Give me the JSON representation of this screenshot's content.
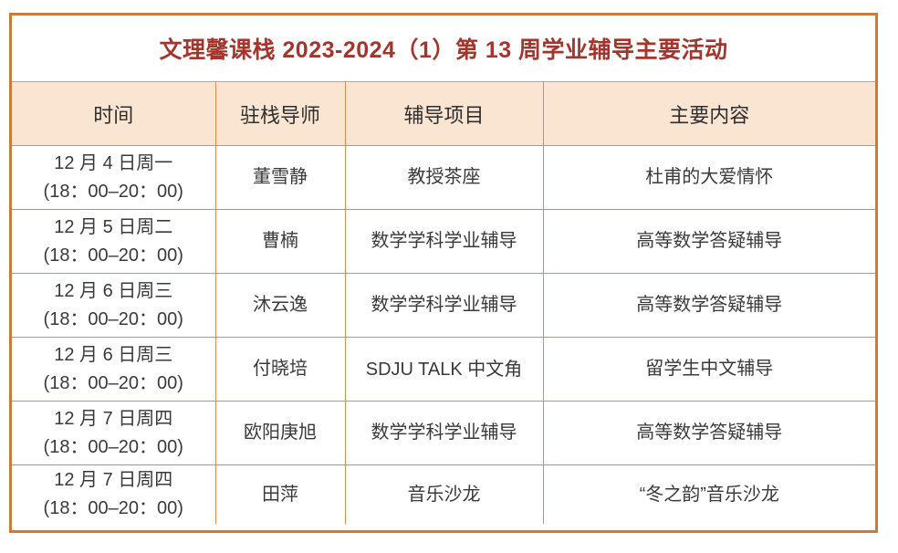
{
  "title": "文理馨课栈 2023-2024（1）第 13 周学业辅导主要活动",
  "table": {
    "columns": [
      "时间",
      "驻栈导师",
      "辅导项目",
      "主要内容"
    ],
    "rows": [
      {
        "date": "12 月 4 日周一",
        "time": "(18：00–20：00)",
        "tutor": "董雪静",
        "project": "教授茶座",
        "content": "杜甫的大爱情怀"
      },
      {
        "date": "12 月 5 日周二",
        "time": "(18：00–20：00)",
        "tutor": "曹楠",
        "project": "数学学科学业辅导",
        "content": "高等数学答疑辅导"
      },
      {
        "date": "12 月 6 日周三",
        "time": "(18：00–20：00)",
        "tutor": "沐云逸",
        "project": "数学学科学业辅导",
        "content": "高等数学答疑辅导"
      },
      {
        "date": "12 月 6 日周三",
        "time": "(18：00–20：00)",
        "tutor": "付晓培",
        "project": "SDJU TALK 中文角",
        "content": "留学生中文辅导"
      },
      {
        "date": "12 月 7 日周四",
        "time": "(18：00–20：00)",
        "tutor": "欧阳庚旭",
        "project": "数学学科学业辅导",
        "content": "高等数学答疑辅导"
      },
      {
        "date": "12 月 7 日周四",
        "time": "(18：00–20：00)",
        "tutor": "田萍",
        "project": "音乐沙龙",
        "content": "“冬之韵”音乐沙龙"
      }
    ]
  },
  "colors": {
    "title_text": "#a3352c",
    "outer_border": "#c97a3d",
    "grid_border": "#e08a50",
    "header_bg": "#f9e5d2",
    "body_text": "#3a3a3a",
    "page_bg": "#ffffff"
  }
}
